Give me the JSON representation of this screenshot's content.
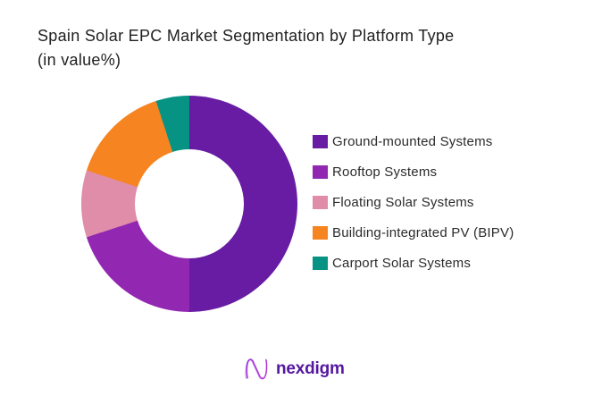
{
  "title": {
    "line1": "Spain Solar EPC Market Segmentation by Platform Type",
    "line2": "(in value%)",
    "color": "#1f1f1f"
  },
  "chart_data": {
    "type": "pie",
    "subtype": "donut",
    "title": "Spain Solar EPC Market Segmentation by Platform Type (in value%)",
    "unit": "value %",
    "labels": [
      "Ground-mounted Systems",
      "Rooftop Systems",
      "Floating Solar Systems",
      "Building-integrated PV (BIPV)",
      "Carport Solar Systems"
    ],
    "values": [
      50,
      20,
      10,
      15,
      5
    ],
    "colors": [
      "#671ca3",
      "#9228b2",
      "#df8da9",
      "#f58421",
      "#069384"
    ],
    "start_angle_deg": 0,
    "direction": "clockwise",
    "inner_radius_ratio": 0.5,
    "legend_position": "right",
    "data_labels_visible": false
  },
  "logo": {
    "text": "nexdigm",
    "text_color": "#54179e",
    "mark_gradient_start": "#8b2fe0",
    "mark_gradient_end": "#c93bd4",
    "mark_icon": "nexdigm-n-mark"
  }
}
